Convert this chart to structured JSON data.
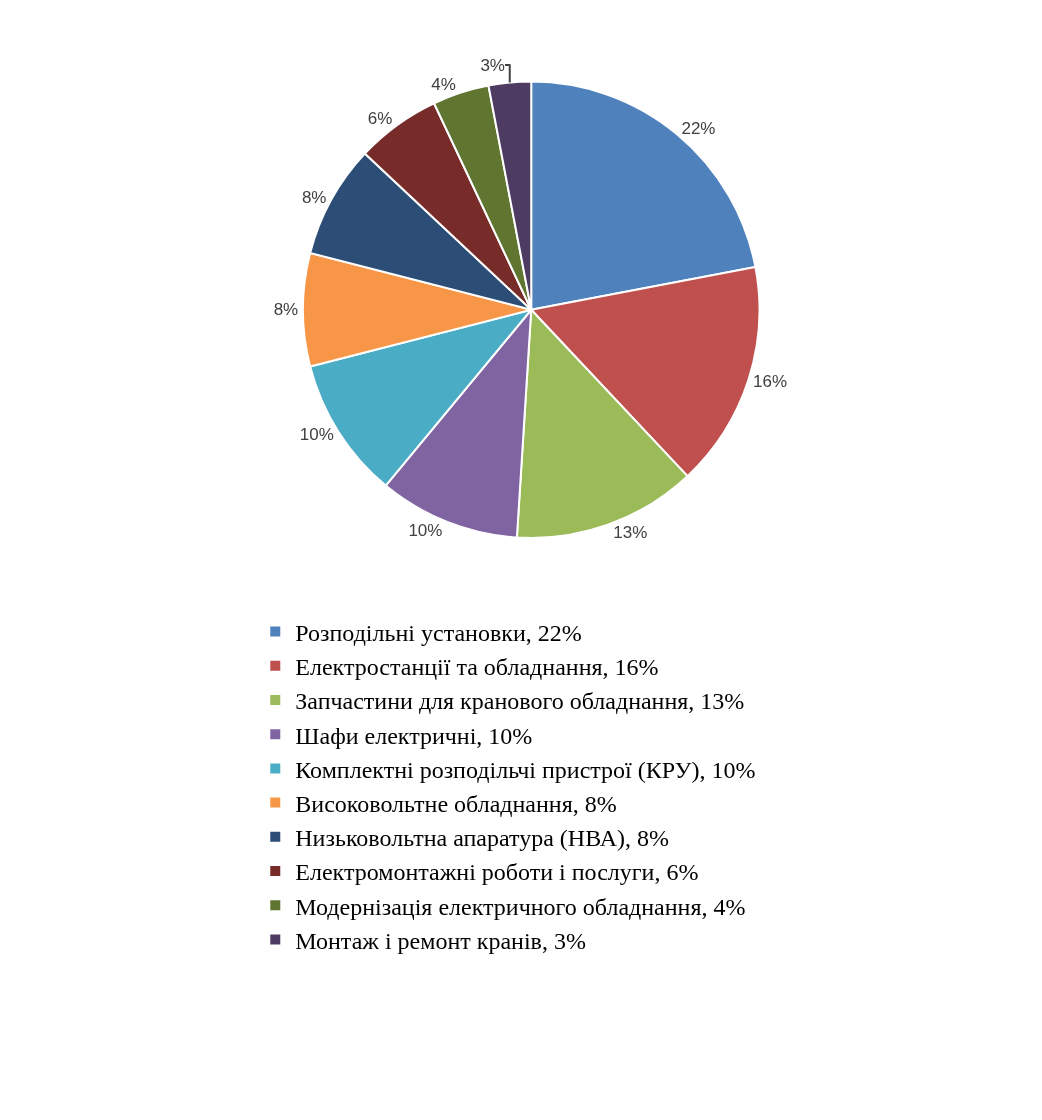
{
  "chart_data": {
    "type": "pie",
    "categories": [
      "Розподільні установки, 22%",
      "Електростанції та обладнання, 16%",
      "Запчастини для кранового обладнання, 13%",
      "Шафи електричні, 10%",
      "Комплектні розподільчі пристрої (КРУ), 10%",
      "Високовольтне обладнання, 8%",
      "Низьковольтна апаратура (НВА), 8%",
      "Електромонтажні роботи і послуги, 6%",
      "Модернізація електричного обладнання, 4%",
      "Монтаж і ремонт кранів, 3%"
    ],
    "values": [
      22,
      16,
      13,
      10,
      10,
      8,
      8,
      6,
      4,
      3
    ],
    "value_labels": [
      "22%",
      "16%",
      "13%",
      "10%",
      "10%",
      "8%",
      "8%",
      "6%",
      "4%",
      "3%"
    ],
    "colors": [
      "#4f81bd",
      "#c0504d",
      "#9bbb59",
      "#8064a2",
      "#4bacc6",
      "#f79646",
      "#2c4d75",
      "#772c2a",
      "#5f7530",
      "#4d3b62"
    ],
    "legend": "bottom"
  }
}
